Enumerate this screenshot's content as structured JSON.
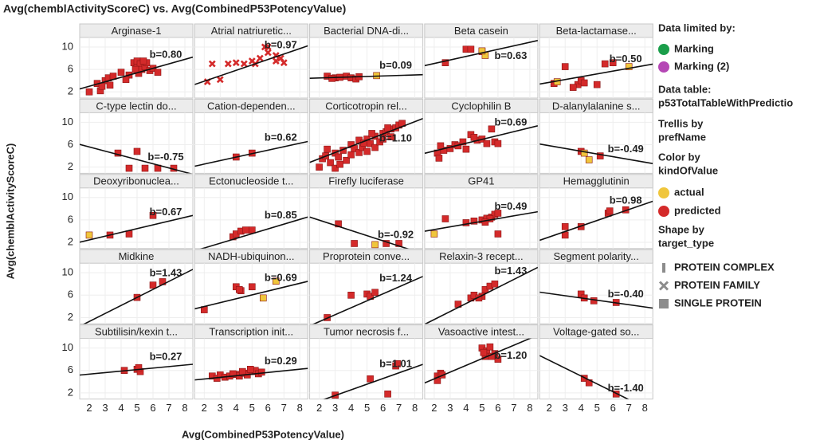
{
  "chart_data": {
    "type": "trellis-scatter",
    "title": "Avg(chemblActivityScoreC) vs. Avg(CombinedP53PotencyValue)",
    "x_label": "Avg(CombinedP53PotencyValue)",
    "y_label": "Avg(chemblActivityScoreC)",
    "xlim": [
      1.4,
      8.5
    ],
    "ylim": [
      0.9,
      11.7
    ],
    "xticks": [
      2,
      3,
      4,
      5,
      6,
      7,
      8
    ],
    "yticks": [
      2,
      6,
      10
    ],
    "grid": true,
    "legend": {
      "data_limited": {
        "title": "Data limited by:",
        "items": [
          {
            "label": "Marking",
            "color": "#1a9e4a"
          },
          {
            "label": "Marking (2)",
            "color": "#b547b5"
          }
        ]
      },
      "data_table": {
        "title": "Data table:",
        "value": "p53TotalTableWithPredictio"
      },
      "trellis": {
        "title": "Trellis by",
        "value": "prefName"
      },
      "color": {
        "title": "Color by",
        "value": "kindOfValue",
        "items": [
          {
            "label": "actual",
            "color": "#f0c63c"
          },
          {
            "label": "predicted",
            "color": "#d42a2a"
          }
        ]
      },
      "shape": {
        "title": "Shape by",
        "value": "target_type",
        "items": [
          {
            "label": "PROTEIN COMPLEX",
            "shape": "bar"
          },
          {
            "label": "PROTEIN FAMILY",
            "shape": "cross"
          },
          {
            "label": "SINGLE PROTEIN",
            "shape": "square"
          }
        ]
      }
    },
    "panels": [
      {
        "title": "Arginase-1",
        "shape": "square",
        "fit": {
          "slope": 0.8,
          "intercept": 1.4,
          "label": "b=0.80"
        },
        "series": [
          {
            "color": "#d42a2a",
            "x": [
              2,
              2.5,
              2.7,
              3,
              3.2,
              3.3,
              4,
              4.5,
              4.8,
              5,
              5,
              5.1,
              5.2,
              5.3,
              5.5,
              5.6,
              5.8,
              6,
              6.3,
              2.8,
              3.5,
              4.9,
              5.4,
              4.3
            ],
            "values": [
              2,
              3.5,
              2.2,
              4,
              4.5,
              3.2,
              5.5,
              5,
              7.2,
              6.5,
              7.5,
              5.3,
              7,
              6,
              6.5,
              7.2,
              5.8,
              6.2,
              5.5,
              3,
              4.8,
              6,
              7.5,
              4.2
            ]
          }
        ]
      },
      {
        "title": "Atrial natriuretic...",
        "shape": "cross",
        "fit": {
          "slope": 0.97,
          "intercept": 1.96,
          "label": "b=0.97"
        },
        "series": [
          {
            "color": "#d42a2a",
            "x": [
              2.2,
              3,
              2.5,
              3.5,
              4,
              4.5,
              5,
              5.5,
              5.8,
              6,
              6.5,
              6.8,
              7,
              6,
              6.5,
              5.2
            ],
            "values": [
              3.8,
              4.2,
              7,
              7,
              7.2,
              7,
              7.5,
              8,
              10,
              9,
              7.5,
              8,
              7.2,
              10,
              8.5,
              7
            ]
          }
        ]
      },
      {
        "title": "Bacterial DNA-di...",
        "shape": "square",
        "fit": {
          "slope": 0.09,
          "intercept": 4.3,
          "label": "b=0.09"
        },
        "series": [
          {
            "color": "#d42a2a",
            "x": [
              2.5,
              3,
              3.3,
              3.7,
              4,
              4.3,
              2.8,
              4.5
            ],
            "values": [
              4.8,
              4.5,
              4.6,
              4.8,
              4.5,
              4.3,
              4.4,
              4.7
            ]
          },
          {
            "color": "#f0c63c",
            "x": [
              5.6
            ],
            "values": [
              4.9
            ]
          }
        ]
      },
      {
        "title": "Beta casein",
        "shape": "square",
        "fit": {
          "slope": 0.63,
          "intercept": 5.8,
          "label": "b=0.63"
        },
        "series": [
          {
            "color": "#d42a2a",
            "x": [
              2.7,
              4,
              4.3,
              5
            ],
            "values": [
              7.2,
              9.6,
              9.6,
              9.2
            ]
          },
          {
            "color": "#f0c63c",
            "x": [
              5.2,
              5
            ],
            "values": [
              8.5,
              9.3
            ]
          }
        ]
      },
      {
        "title": "Beta-lactamase...",
        "shape": "square",
        "fit": {
          "slope": 0.5,
          "intercept": 2.7,
          "label": "b=0.50"
        },
        "series": [
          {
            "color": "#d42a2a",
            "x": [
              2.3,
              3,
              3.8,
              4,
              4.2,
              5,
              5.5,
              6,
              3.5
            ],
            "values": [
              3.5,
              6.5,
              3.3,
              4,
              3.6,
              3.3,
              7,
              7.2,
              2.8
            ]
          },
          {
            "color": "#f0c63c",
            "x": [
              7,
              2.5
            ],
            "values": [
              6.5,
              3.8
            ]
          }
        ]
      },
      {
        "title": "C-type lectin do...",
        "shape": "square",
        "fit": {
          "slope": -0.75,
          "intercept": 7.1,
          "label": "b=-0.75"
        },
        "series": [
          {
            "color": "#d42a2a",
            "x": [
              3.8,
              4.5,
              5,
              5.5,
              6.3,
              7.3
            ],
            "values": [
              4.5,
              1.8,
              4.8,
              1.8,
              1.8,
              1.8
            ]
          }
        ]
      },
      {
        "title": "Cation-dependen...",
        "shape": "square",
        "fit": {
          "slope": 0.62,
          "intercept": 1.3,
          "label": "b=0.62"
        },
        "series": [
          {
            "color": "#d42a2a",
            "x": [
              4,
              5
            ],
            "values": [
              3.8,
              4.5
            ]
          }
        ]
      },
      {
        "title": "Corticotropin rel...",
        "shape": "square",
        "fit": {
          "slope": 1.1,
          "intercept": 1.3,
          "label": "b=1.10"
        },
        "series": [
          {
            "color": "#d42a2a",
            "x": [
              2,
              2.2,
              2.5,
              2.7,
              3,
              3,
              3.2,
              3.5,
              3.7,
              4,
              4,
              4.2,
              4.5,
              4.5,
              4.7,
              5,
              5,
              5.2,
              5.5,
              5.5,
              5.8,
              6,
              6,
              6.2,
              6.5,
              6.5,
              6.8,
              7,
              7.2,
              3.3,
              4.8,
              5.3,
              2.4,
              6.3
            ],
            "values": [
              2,
              3.5,
              5.2,
              2.8,
              4.5,
              1.8,
              3.8,
              5,
              3.2,
              6,
              4.2,
              5.3,
              4.6,
              6.8,
              5.5,
              7,
              4.8,
              6.2,
              7.5,
              5.5,
              6.5,
              8,
              7,
              8.3,
              8.8,
              7.4,
              9,
              9.5,
              9.8,
              2.5,
              6.3,
              8,
              4,
              9
            ]
          }
        ]
      },
      {
        "title": "Cyclophilin B",
        "shape": "square",
        "fit": {
          "slope": 0.69,
          "intercept": 3.5,
          "label": "b=0.69"
        },
        "series": [
          {
            "color": "#d42a2a",
            "x": [
              2.2,
              2.3,
              2.6,
              3,
              3.3,
              3.5,
              3.8,
              4,
              4.3,
              4.7,
              5,
              5.3,
              5.6,
              5.8,
              6,
              2.4,
              4.5
            ],
            "values": [
              4.5,
              3.6,
              5,
              5.3,
              6,
              5.8,
              6.5,
              5.2,
              7.8,
              6.8,
              7,
              6.2,
              8.8,
              6.5,
              6.2,
              5.8,
              7.3
            ]
          }
        ]
      },
      {
        "title": "D-alanylalanine s...",
        "shape": "square",
        "fit": {
          "slope": -0.49,
          "intercept": 6.8,
          "label": "b=-0.49"
        },
        "series": [
          {
            "color": "#d42a2a",
            "x": [
              4,
              5.2
            ],
            "values": [
              4.8,
              4
            ]
          },
          {
            "color": "#f0c63c",
            "x": [
              4.2,
              4.5
            ],
            "values": [
              4.5,
              3.3
            ]
          }
        ]
      },
      {
        "title": "Deoxyribonuclea...",
        "shape": "square",
        "fit": {
          "slope": 0.67,
          "intercept": 1.1,
          "label": "b=0.67"
        },
        "series": [
          {
            "color": "#d42a2a",
            "x": [
              3.3,
              4.5,
              6
            ],
            "values": [
              3.3,
              3.5,
              6.8
            ]
          },
          {
            "color": "#f0c63c",
            "x": [
              2
            ],
            "values": [
              3.3
            ]
          }
        ]
      },
      {
        "title": "Ectonucleoside t...",
        "shape": "square",
        "fit": {
          "slope": 0.85,
          "intercept": -0.7,
          "label": "b=0.85"
        },
        "series": [
          {
            "color": "#d42a2a",
            "x": [
              3.8,
              4,
              4.3,
              4.6,
              5
            ],
            "values": [
              3,
              3.5,
              4,
              4.2,
              4.2
            ]
          }
        ]
      },
      {
        "title": "Firefly luciferase",
        "shape": "square",
        "fit": {
          "slope": -0.92,
          "intercept": 7.8,
          "label": "b=-0.92"
        },
        "series": [
          {
            "color": "#d42a2a",
            "x": [
              3.2,
              4.2,
              6.2,
              7
            ],
            "values": [
              5.3,
              1.8,
              1.8,
              1.8
            ]
          },
          {
            "color": "#f0c63c",
            "x": [
              5.5
            ],
            "values": [
              1.6
            ]
          }
        ]
      },
      {
        "title": "GP41",
        "shape": "square",
        "fit": {
          "slope": 0.49,
          "intercept": 3.3,
          "label": "b=0.49"
        },
        "series": [
          {
            "color": "#d42a2a",
            "x": [
              2.7,
              4,
              4.5,
              5,
              5.3,
              5.6,
              5.8,
              6,
              5.5,
              6,
              5.2
            ],
            "values": [
              6.2,
              5.5,
              5.8,
              6,
              6.3,
              6.5,
              7,
              7.2,
              6.2,
              3.5,
              5.6
            ]
          },
          {
            "color": "#f0c63c",
            "x": [
              2
            ],
            "values": [
              3.5
            ]
          }
        ]
      },
      {
        "title": "Hemagglutinin",
        "shape": "square",
        "fit": {
          "slope": 0.98,
          "intercept": 1,
          "label": "b=0.98"
        },
        "series": [
          {
            "color": "#d42a2a",
            "x": [
              3,
              3,
              4,
              5.7,
              6.8,
              5.8
            ],
            "values": [
              3.3,
              4.8,
              4.8,
              7.2,
              7.8,
              7.6
            ]
          }
        ]
      },
      {
        "title": "Midkine",
        "shape": "square",
        "fit": {
          "slope": 1.43,
          "intercept": -1.55,
          "label": "b=1.43"
        },
        "series": [
          {
            "color": "#d42a2a",
            "x": [
              5,
              6,
              6.6
            ],
            "values": [
              5.6,
              7.8,
              8.4
            ]
          }
        ]
      },
      {
        "title": "NADH-ubiquinon...",
        "shape": "square",
        "fit": {
          "slope": 0.69,
          "intercept": 2.6,
          "label": "b=0.69"
        },
        "series": [
          {
            "color": "#d42a2a",
            "x": [
              2,
              4,
              4.3,
              4.2,
              5
            ],
            "values": [
              3.4,
              7.5,
              6.8,
              7,
              7.5
            ]
          },
          {
            "color": "#f0c63c",
            "x": [
              6.5,
              5.7
            ],
            "values": [
              8.5,
              5.5
            ]
          }
        ]
      },
      {
        "title": "Proprotein conve...",
        "shape": "square",
        "fit": {
          "slope": 1.24,
          "intercept": -1.2,
          "label": "b=1.24"
        },
        "series": [
          {
            "color": "#d42a2a",
            "x": [
              2.5,
              4,
              5,
              5.2,
              5.5
            ],
            "values": [
              2,
              6,
              6.2,
              5.8,
              6.5
            ]
          }
        ]
      },
      {
        "title": "Relaxin-3 recept...",
        "shape": "square",
        "fit": {
          "slope": 1.43,
          "intercept": -1.2,
          "label": "b=1.43"
        },
        "series": [
          {
            "color": "#d42a2a",
            "x": [
              3.5,
              4.3,
              4.5,
              5,
              5.2,
              5.5,
              5.8,
              4.8
            ],
            "values": [
              4.4,
              5.5,
              6,
              5.8,
              7,
              7.6,
              8,
              5.5
            ]
          }
        ]
      },
      {
        "title": "Segment polarity...",
        "shape": "square",
        "fit": {
          "slope": -0.4,
          "intercept": 7.1,
          "label": "b=-0.40"
        },
        "series": [
          {
            "color": "#d42a2a",
            "x": [
              4,
              4.2,
              4.8,
              6.2
            ],
            "values": [
              6.2,
              5.5,
              5,
              4.7
            ]
          }
        ]
      },
      {
        "title": "Subtilisin/kexin t...",
        "shape": "square",
        "fit": {
          "slope": 0.27,
          "intercept": 4.8,
          "label": "b=0.27"
        },
        "series": [
          {
            "color": "#d42a2a",
            "x": [
              4.2,
              5,
              5.2,
              5.1
            ],
            "values": [
              6,
              6.2,
              5.8,
              6.5
            ]
          }
        ]
      },
      {
        "title": "Transcription init...",
        "shape": "square",
        "fit": {
          "slope": 0.29,
          "intercept": 3.9,
          "label": "b=0.29"
        },
        "series": [
          {
            "color": "#d42a2a",
            "x": [
              2.5,
              2.8,
              3,
              3.3,
              3.6,
              4,
              4.2,
              4.5,
              4.7,
              5,
              5.2,
              5.4,
              5.6,
              3.8,
              4.4,
              4.9
            ],
            "values": [
              5,
              4.6,
              5.2,
              4.8,
              5,
              5.3,
              5,
              5.5,
              5.2,
              5.8,
              6,
              5.4,
              5.7,
              5.4,
              5.8,
              6.2
            ]
          }
        ]
      },
      {
        "title": "Tumor necrosis f...",
        "shape": "square",
        "fit": {
          "slope": 1.01,
          "intercept": -1.5,
          "label": "b=1.01"
        },
        "series": [
          {
            "color": "#d42a2a",
            "x": [
              3,
              5.2,
              6.3,
              6.8,
              6.9
            ],
            "values": [
              1.6,
              4.5,
              1.8,
              6.8,
              7.2
            ]
          }
        ]
      },
      {
        "title": "Vasoactive intest...",
        "shape": "square",
        "fit": {
          "slope": 1.2,
          "intercept": 2.1,
          "label": "b=1.20"
        },
        "series": [
          {
            "color": "#d42a2a",
            "x": [
              2.2,
              2.4,
              2.2,
              2.5,
              5,
              5.3,
              5.5,
              5.2,
              5.8,
              6,
              5.6,
              5.1
            ],
            "values": [
              5,
              5.5,
              4.2,
              5.2,
              10,
              9.5,
              10.2,
              8.5,
              9,
              8,
              8.5,
              9.2
            ]
          }
        ]
      },
      {
        "title": "Voltage-gated so...",
        "shape": "square",
        "fit": {
          "slope": -1.4,
          "intercept": 10.6,
          "label": "b=-1.40"
        },
        "series": [
          {
            "color": "#d42a2a",
            "x": [
              4.2,
              4.5,
              6.2
            ],
            "values": [
              4.6,
              3.8,
              1.8
            ]
          }
        ]
      }
    ]
  }
}
